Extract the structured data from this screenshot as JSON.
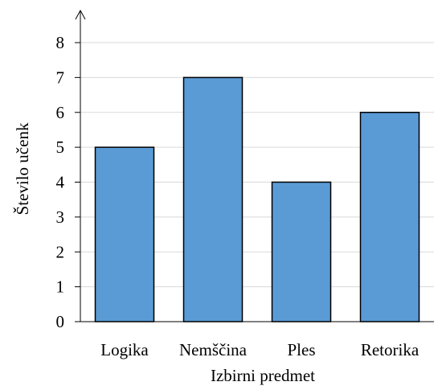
{
  "chart_data": {
    "type": "bar",
    "title": "",
    "xlabel": "Izbirni predmet",
    "ylabel": "Število učenk",
    "categories": [
      "Logika",
      "Nemščina",
      "Ples",
      "Retorika"
    ],
    "values": [
      5,
      7,
      4,
      6
    ],
    "ylim": [
      0,
      8
    ],
    "yticks": [
      "0",
      "1",
      "2",
      "3",
      "4",
      "5",
      "6",
      "7",
      "8"
    ],
    "grid": true,
    "bar_color": "#5b9bd5",
    "bar_edge_color": "#000000",
    "grid_color": "#d9d9d9"
  }
}
